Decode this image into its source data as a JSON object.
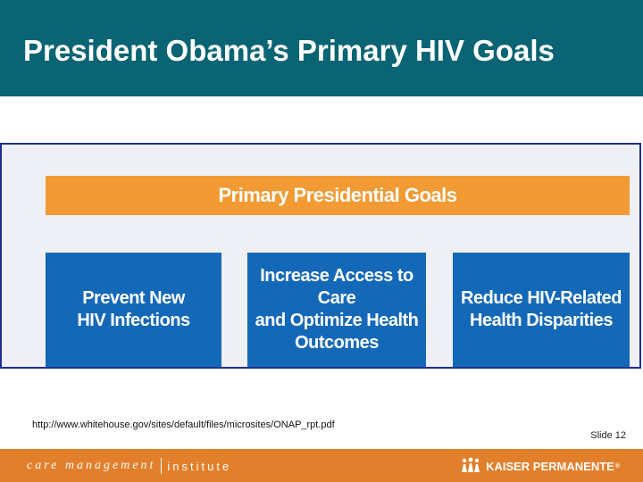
{
  "slide": {
    "title": "President Obama’s Primary HIV Goals",
    "source_url": "http://www.whitehouse.gov/sites/default/files/microsites/ONAP_rpt.pdf",
    "slide_number": "Slide 12"
  },
  "diagram": {
    "header": "Primary Presidential Goals",
    "goals": [
      "Prevent New\nHIV Infections",
      "Increase Access to Care\nand Optimize Health\nOutcomes",
      "Reduce HIV-Related\nHealth Disparities"
    ]
  },
  "footer": {
    "left_brand": "care management",
    "left_brand_suffix": "institute",
    "right_brand": "KAISER PERMANENTE",
    "right_brand_mark": "®"
  },
  "colors": {
    "title_bar": "#0a6473",
    "header_orange": "#f29a33",
    "goal_blue": "#1468b8",
    "footer_orange": "#e27f2b",
    "diagram_border": "#1f2d9a"
  },
  "icons": [
    "kaiser-permanente-logo-icon"
  ]
}
